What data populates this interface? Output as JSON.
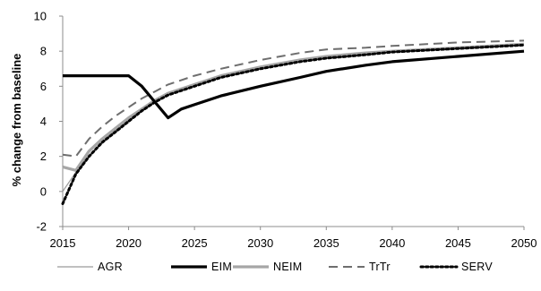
{
  "chart_data": {
    "type": "line",
    "title": "",
    "xlabel": "",
    "ylabel": "% change from baseline",
    "xlim": [
      2015,
      2050
    ],
    "ylim": [
      -2,
      10
    ],
    "x_ticks": [
      "2015",
      "2020",
      "2025",
      "2030",
      "2035",
      "2040",
      "2045",
      "2050"
    ],
    "y_ticks": [
      "-2",
      "0",
      "2",
      "4",
      "6",
      "8",
      "10"
    ],
    "grid": false,
    "legend_position": "bottom",
    "series": [
      {
        "name": "AGR",
        "color": "#9a9a9a",
        "style": "thin-solid",
        "x": [
          2015,
          2016,
          2017,
          2018,
          2019,
          2020,
          2021,
          2022,
          2023,
          2025,
          2027,
          2030,
          2033,
          2035,
          2038,
          2040,
          2045,
          2050
        ],
        "y": [
          0.0,
          1.1,
          2.0,
          2.8,
          3.5,
          4.1,
          4.7,
          5.2,
          5.6,
          6.1,
          6.5,
          7.0,
          7.4,
          7.6,
          7.8,
          8.0,
          8.2,
          8.4
        ]
      },
      {
        "name": "EIM",
        "color": "#000000",
        "style": "thick-solid",
        "x": [
          2015,
          2016,
          2017,
          2018,
          2019,
          2020,
          2021,
          2022,
          2023,
          2024,
          2025,
          2027,
          2030,
          2033,
          2035,
          2038,
          2040,
          2045,
          2050
        ],
        "y": [
          6.6,
          6.6,
          6.6,
          6.6,
          6.6,
          6.6,
          6.0,
          5.1,
          4.2,
          4.7,
          4.95,
          5.45,
          6.0,
          6.5,
          6.85,
          7.2,
          7.4,
          7.7,
          8.0
        ]
      },
      {
        "name": "NEIM",
        "color": "#a6a6a6",
        "style": "thick-solid",
        "x": [
          2015,
          2016,
          2017,
          2018,
          2019,
          2020,
          2021,
          2022,
          2023,
          2025,
          2027,
          2030,
          2033,
          2035,
          2038,
          2040,
          2045,
          2050
        ],
        "y": [
          1.4,
          1.2,
          2.3,
          3.0,
          3.6,
          4.2,
          4.7,
          5.2,
          5.6,
          6.1,
          6.6,
          7.1,
          7.5,
          7.7,
          7.9,
          8.0,
          8.2,
          8.4
        ]
      },
      {
        "name": "TrTr",
        "color": "#6e6e6e",
        "style": "dashed",
        "x": [
          2015,
          2016,
          2017,
          2018,
          2019,
          2020,
          2021,
          2022,
          2023,
          2025,
          2027,
          2030,
          2033,
          2035,
          2038,
          2040,
          2045,
          2050
        ],
        "y": [
          2.1,
          2.0,
          3.0,
          3.7,
          4.3,
          4.8,
          5.3,
          5.7,
          6.1,
          6.6,
          7.0,
          7.5,
          7.9,
          8.1,
          8.2,
          8.3,
          8.5,
          8.6
        ]
      },
      {
        "name": "SERV",
        "color": "#000000",
        "style": "dotted",
        "x": [
          2015,
          2016,
          2017,
          2018,
          2019,
          2020,
          2021,
          2022,
          2023,
          2025,
          2027,
          2030,
          2033,
          2035,
          2038,
          2040,
          2045,
          2050
        ],
        "y": [
          -0.7,
          1.0,
          2.0,
          2.8,
          3.4,
          4.0,
          4.6,
          5.1,
          5.5,
          6.0,
          6.5,
          7.0,
          7.4,
          7.6,
          7.8,
          7.95,
          8.15,
          8.35
        ]
      }
    ]
  }
}
